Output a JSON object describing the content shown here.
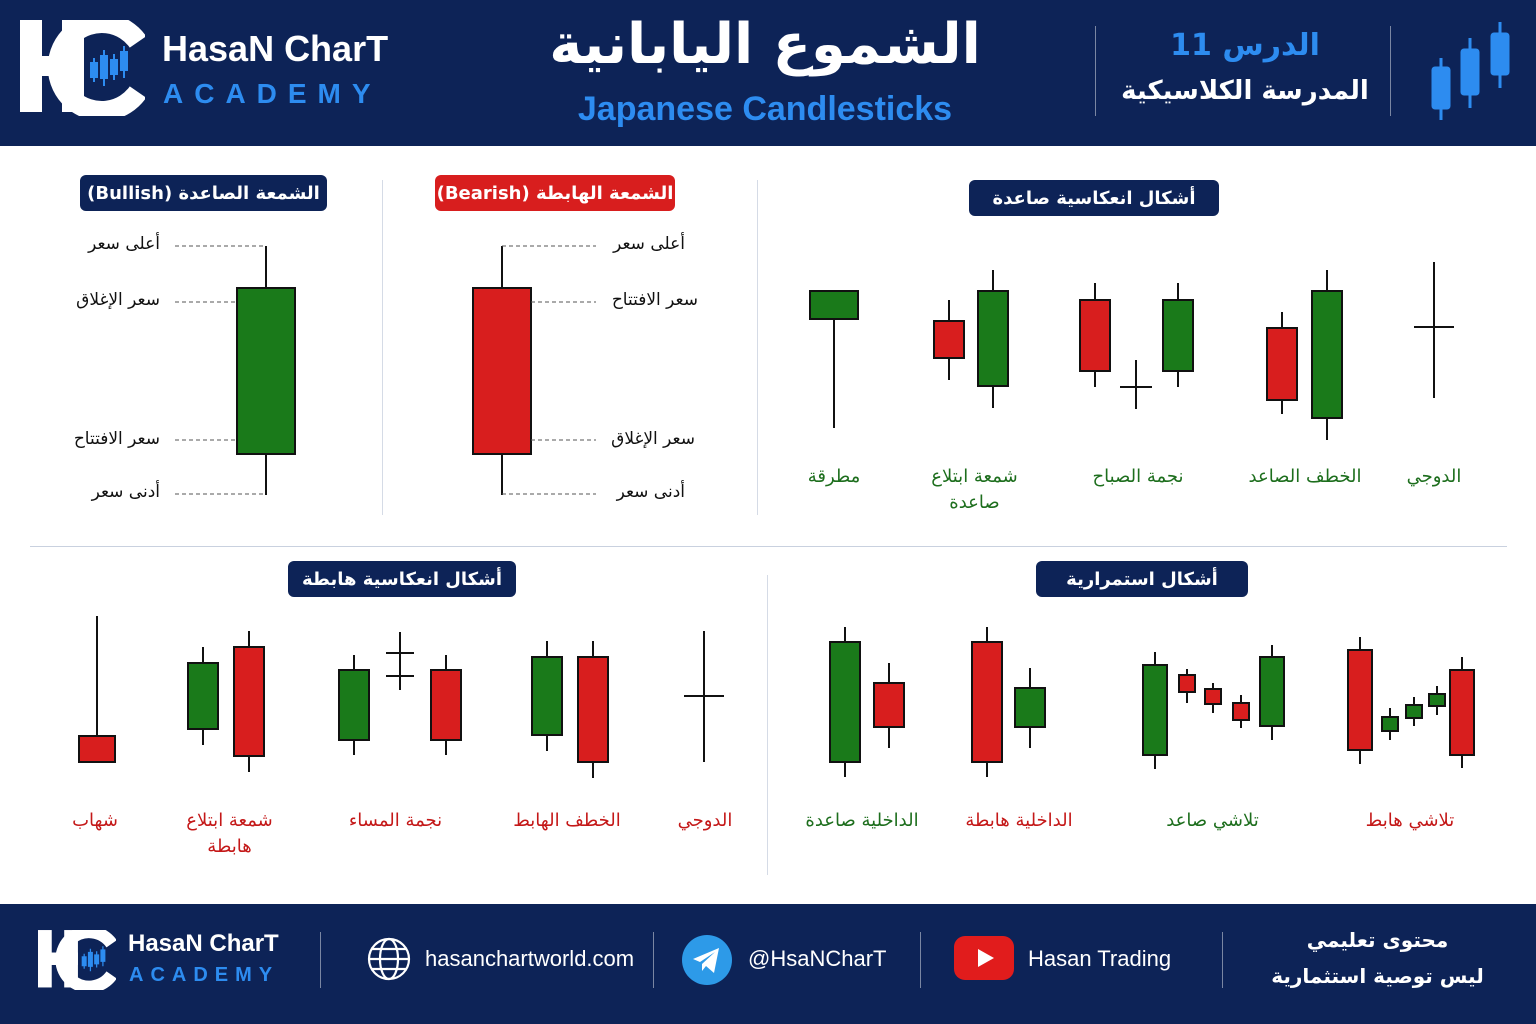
{
  "header": {
    "brand": {
      "name": "HasaN CharT",
      "sub": "ACADEMY",
      "monogram": "HC"
    },
    "title_ar": "الشموع اليابانية",
    "title_en": "Japanese Candlesticks",
    "lesson_number": "الدرس 11",
    "lesson_school": "المدرسة الكلاسيكية",
    "icon": "candlestick-chart-icon"
  },
  "colors": {
    "navy": "#0d2357",
    "accent_blue": "#2d8cf0",
    "bull_green": "#1a7a1a",
    "bear_red": "#d81e1e",
    "caption_green": "#1d6e1d",
    "caption_red": "#c41818"
  },
  "anatomy": {
    "bullish": {
      "title": "الشمعة الصاعدة (Bullish)",
      "labels": {
        "high": "أعلى سعر",
        "close": "سعر الإغلاق",
        "open": "سعر الافتتاح",
        "low": "أدنى سعر"
      }
    },
    "bearish": {
      "title": "الشمعة الهابطة (Bearish)",
      "labels": {
        "high": "أعلى سعر",
        "open": "سعر الافتتاح",
        "close": "سعر الإغلاق",
        "low": "أدنى سعر"
      }
    }
  },
  "bullish_reversal": {
    "title": "أشكال انعكاسية صاعدة",
    "patterns": [
      "مطرقة",
      "شمعة ابتلاع صاعدة",
      "نجمة الصباح",
      "الخطف الصاعد",
      "الدوجي"
    ]
  },
  "bearish_reversal": {
    "title": "أشكال انعكاسية هابطة",
    "patterns": [
      "شهاب",
      "شمعة ابتلاع هابطة",
      "نجمة المساء",
      "الخطف الهابط",
      "الدوجي"
    ]
  },
  "continuation": {
    "title": "أشكال استمرارية",
    "patterns": [
      "الداخلية صاعدة",
      "الداخلية هابطة",
      "تلاشي صاعد",
      "تلاشي هابط"
    ]
  },
  "footer": {
    "brand": {
      "name": "HasaN CharT",
      "sub": "ACADEMY",
      "monogram": "HC"
    },
    "website": "hasanchartworld.com",
    "telegram": "@HsaNCharT",
    "youtube": "Hasan Trading",
    "disclaimer_line1": "محتوى تعليمي",
    "disclaimer_line2": "ليس توصية استثمارية",
    "icons": [
      "globe-icon",
      "telegram-icon",
      "youtube-icon"
    ]
  }
}
